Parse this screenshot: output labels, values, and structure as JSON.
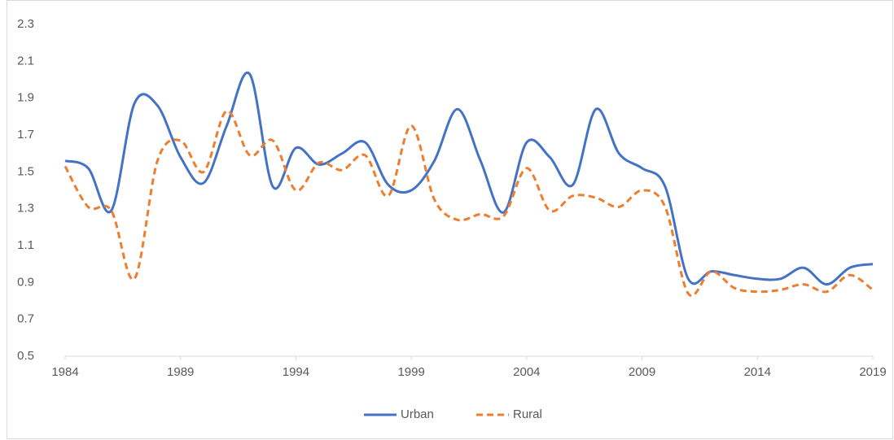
{
  "chart_data": {
    "type": "line",
    "x": [
      1984,
      1985,
      1986,
      1987,
      1988,
      1989,
      1990,
      1991,
      1992,
      1993,
      1994,
      1995,
      1996,
      1997,
      1998,
      1999,
      2000,
      2001,
      2002,
      2003,
      2004,
      2005,
      2006,
      2007,
      2008,
      2009,
      2010,
      2011,
      2012,
      2013,
      2014,
      2015,
      2016,
      2017,
      2018,
      2019
    ],
    "series": [
      {
        "name": "Urban",
        "color": "#4472c4",
        "dash": false,
        "values": [
          1.56,
          1.52,
          1.29,
          1.87,
          1.86,
          1.58,
          1.44,
          1.75,
          2.03,
          1.42,
          1.63,
          1.54,
          1.6,
          1.66,
          1.43,
          1.4,
          1.56,
          1.84,
          1.56,
          1.28,
          1.66,
          1.58,
          1.43,
          1.84,
          1.6,
          1.52,
          1.42,
          0.92,
          0.96,
          0.94,
          0.92,
          0.92,
          0.98,
          0.89,
          0.98,
          1.0
        ]
      },
      {
        "name": "Rural",
        "color": "#ed7d31",
        "dash": true,
        "values": [
          1.53,
          1.31,
          1.29,
          0.92,
          1.56,
          1.67,
          1.5,
          1.83,
          1.59,
          1.67,
          1.4,
          1.55,
          1.51,
          1.59,
          1.37,
          1.75,
          1.35,
          1.24,
          1.27,
          1.26,
          1.52,
          1.29,
          1.37,
          1.36,
          1.31,
          1.4,
          1.31,
          0.84,
          0.96,
          0.87,
          0.85,
          0.86,
          0.89,
          0.85,
          0.94,
          0.86
        ]
      }
    ],
    "xlim": [
      1984,
      2019
    ],
    "xticks": [
      1984,
      1989,
      1994,
      1999,
      2004,
      2009,
      2014,
      2019
    ],
    "ylim": [
      0.5,
      2.3
    ],
    "yticks": [
      0.5,
      0.7,
      0.9,
      1.1,
      1.3,
      1.5,
      1.7,
      1.9,
      2.1,
      2.3
    ],
    "grid": false,
    "legend": "bottom",
    "smooth": true
  }
}
